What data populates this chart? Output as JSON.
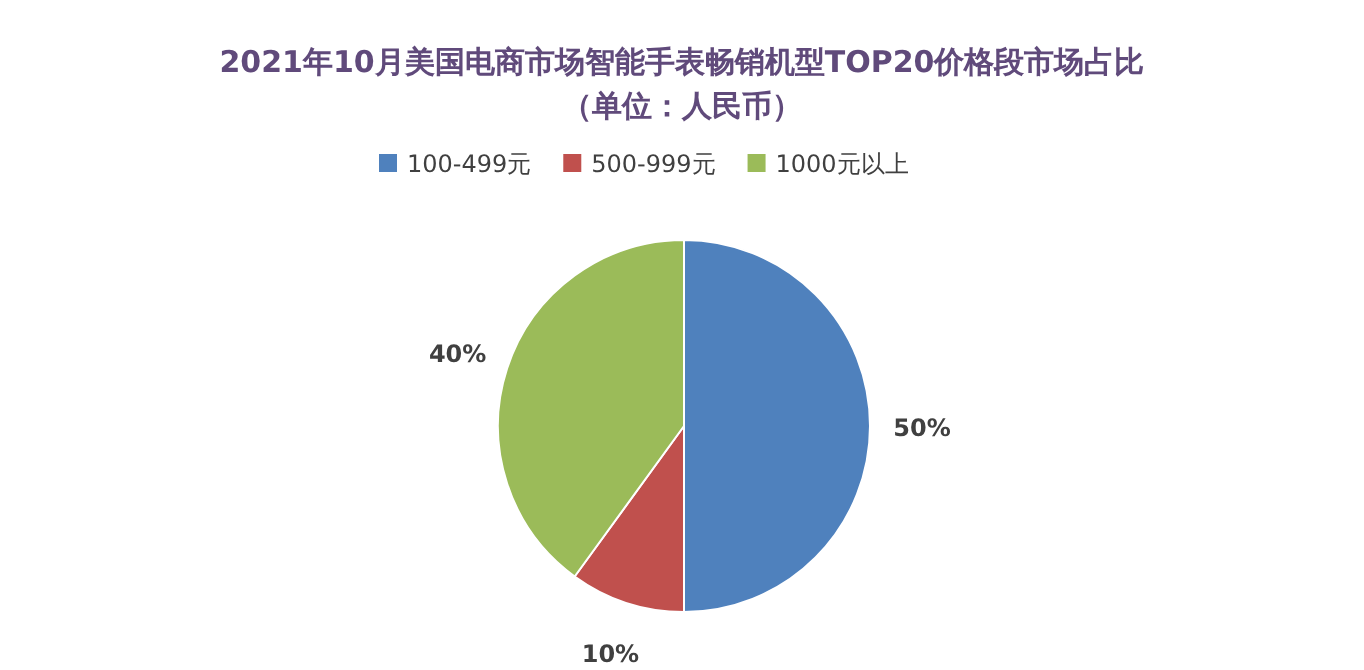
{
  "chart_data": {
    "type": "pie",
    "title": "2021年10月美国电商市场智能手表畅销机型TOP20价格段市场占比",
    "subtitle": "（单位：人民币）",
    "categories": [
      "100-499元",
      "500-999元",
      "1000元以上"
    ],
    "values": [
      50,
      10,
      40
    ],
    "colors": [
      "#4f81bd",
      "#c0504d",
      "#9bbb59"
    ],
    "value_labels": [
      "50%",
      "10%",
      "40%"
    ],
    "legend": "top"
  }
}
